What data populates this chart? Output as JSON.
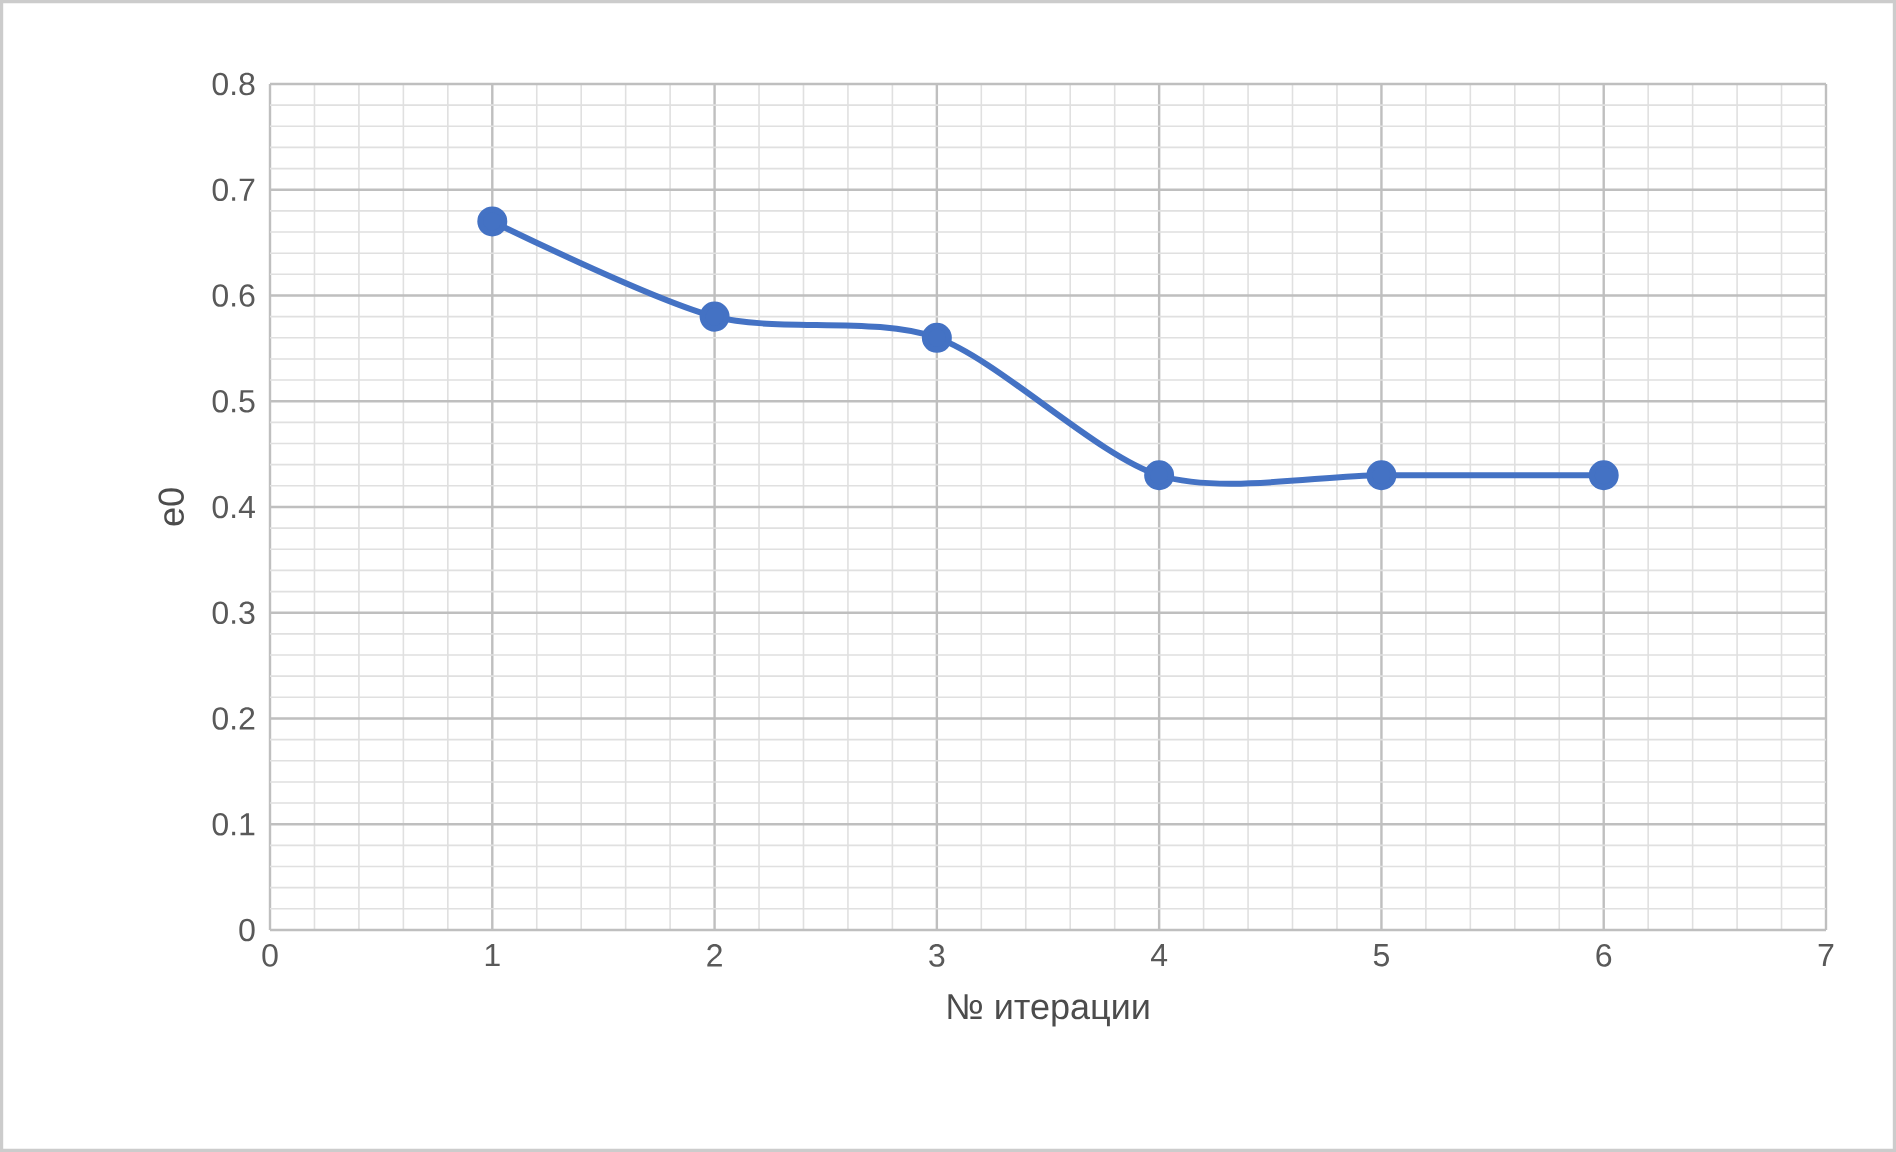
{
  "chart_data": {
    "type": "line",
    "xlabel": "№ итерации",
    "ylabel": "e0",
    "x": [
      1,
      2,
      3,
      4,
      5,
      6
    ],
    "series": [
      {
        "color": "#4472c4",
        "values": [
          0.67,
          0.58,
          0.56,
          0.43,
          0.43,
          0.43
        ]
      }
    ],
    "xlim": [
      0,
      7
    ],
    "xticks": [
      0,
      1,
      2,
      3,
      4,
      5,
      6,
      7
    ],
    "ylim": [
      0,
      0.8
    ],
    "yticks": [
      0,
      0.1,
      0.2,
      0.3,
      0.4,
      0.5,
      0.6,
      0.7,
      0.8
    ],
    "grid": true,
    "marker": "circle",
    "line_style": "solid"
  }
}
